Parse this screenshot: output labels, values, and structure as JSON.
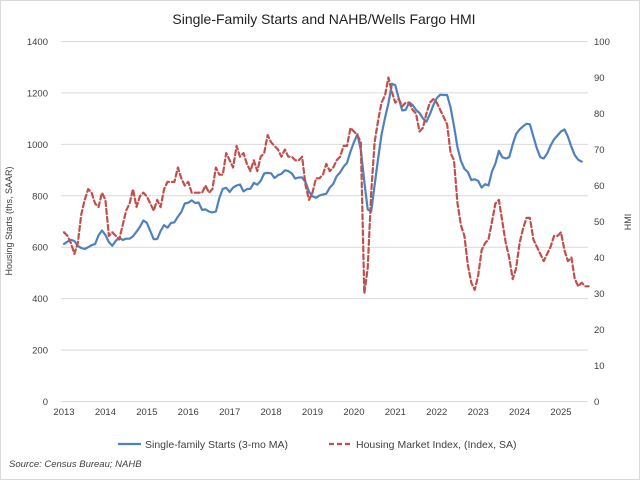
{
  "title": "Single-Family Starts and NAHB/Wells Fargo HMI",
  "source_note": "Source: Census Bureau; NAHB",
  "left_axis": {
    "title": "Housing Starts (ths, SAAR)",
    "ticks": [
      "0",
      "200",
      "400",
      "600",
      "800",
      "1000",
      "1200",
      "1400"
    ]
  },
  "right_axis": {
    "title": "HMI",
    "ticks": [
      "0",
      "10",
      "20",
      "30",
      "40",
      "50",
      "60",
      "70",
      "80",
      "90",
      "100"
    ]
  },
  "x_axis": {
    "ticks": [
      "2013",
      "2014",
      "2015",
      "2016",
      "2017",
      "2018",
      "2019",
      "2020",
      "2021",
      "2022",
      "2023",
      "2024",
      "2025"
    ]
  },
  "legend": {
    "items": [
      {
        "label": "Single-family Starts (3-mo MA)",
        "color": "#4F81BD",
        "line_style": "solid"
      },
      {
        "label": "Housing Market Index, (Index, SA)",
        "color": "#C0504D",
        "line_style": "dashed"
      }
    ]
  },
  "colors": {
    "starts_line": "#4F81BD",
    "hmi_line": "#C0504D",
    "gridline": "#D9D9D9",
    "tick_text": "#404040",
    "title_text": "#1F1F1F",
    "border": "#D9D9D9"
  },
  "chart_data": {
    "type": "line",
    "title": "Single-Family Starts and NAHB/Wells Fargo HMI",
    "x_frequency": "monthly",
    "x_start": "2013-01",
    "x_tick_labels": [
      "2013",
      "2014",
      "2015",
      "2016",
      "2017",
      "2018",
      "2019",
      "2020",
      "2021",
      "2022",
      "2023",
      "2024",
      "2025"
    ],
    "left_axis_label": "Housing Starts (ths, SAAR)",
    "left_ylim": [
      0,
      1400
    ],
    "left_tick_step": 200,
    "right_axis_label": "HMI",
    "right_ylim": [
      0,
      100
    ],
    "right_tick_step": 10,
    "grid": "horizontal",
    "legend_position": "bottom",
    "series": [
      {
        "name": "Single-family Starts (3-mo MA)",
        "axis": "left",
        "units": "thousands, SAAR",
        "color": "#4F81BD",
        "line_style": "solid",
        "values_by_year": {
          "2013": [
            613,
            622,
            629,
            624,
            605,
            597,
            593,
            600,
            608,
            612,
            646,
            665
          ],
          "2014": [
            648,
            620,
            606,
            625,
            637,
            628,
            633,
            633,
            643,
            660,
            679,
            704
          ],
          "2015": [
            695,
            663,
            631,
            632,
            663,
            686,
            676,
            694,
            697,
            719,
            737,
            770
          ],
          "2016": [
            773,
            782,
            772,
            774,
            745,
            747,
            739,
            735,
            739,
            791,
            827,
            831
          ],
          "2017": [
            815,
            832,
            840,
            844,
            817,
            826,
            827,
            850,
            843,
            858,
            887,
            889
          ],
          "2018": [
            887,
            869,
            880,
            885,
            899,
            896,
            887,
            867,
            871,
            871,
            853,
            816
          ],
          "2019": [
            798,
            792,
            801,
            805,
            808,
            832,
            846,
            876,
            891,
            913,
            928,
            972
          ],
          "2020": [
            1008,
            1039,
            979,
            856,
            747,
            739,
            841,
            944,
            1037,
            1103,
            1159,
            1236
          ],
          "2021": [
            1230,
            1178,
            1132,
            1134,
            1163,
            1153,
            1134,
            1122,
            1101,
            1088,
            1116,
            1152
          ],
          "2022": [
            1180,
            1193,
            1192,
            1192,
            1143,
            1071,
            988,
            936,
            905,
            893,
            861,
            864
          ],
          "2023": [
            858,
            832,
            845,
            840,
            895,
            925,
            975,
            950,
            945,
            950,
            1000,
            1040
          ],
          "2024": [
            1058,
            1070,
            1080,
            1078,
            1030,
            985,
            950,
            945,
            965,
            995,
            1020,
            1035
          ],
          "2025": [
            1050,
            1058,
            1030,
            990,
            958,
            940,
            933
          ]
        }
      },
      {
        "name": "Housing Market Index, (Index, SA)",
        "axis": "right",
        "units": "index",
        "color": "#C0504D",
        "line_style": "dashed",
        "values_by_year": {
          "2013": [
            47,
            46,
            44,
            41,
            44,
            52,
            56,
            59,
            58,
            55,
            54,
            58
          ],
          "2014": [
            56,
            46,
            47,
            46,
            45,
            49,
            53,
            55,
            59,
            54,
            57,
            58
          ],
          "2015": [
            57,
            55,
            53,
            56,
            54,
            59,
            61,
            61,
            61,
            65,
            62,
            60
          ],
          "2016": [
            61,
            58,
            58,
            58,
            58,
            60,
            58,
            59,
            65,
            63,
            63,
            69
          ],
          "2017": [
            67,
            65,
            71,
            68,
            69,
            66,
            64,
            67,
            64,
            68,
            69,
            74
          ],
          "2018": [
            72,
            71,
            70,
            68,
            70,
            68,
            68,
            67,
            67,
            68,
            60,
            56
          ],
          "2019": [
            58,
            62,
            62,
            63,
            66,
            64,
            65,
            67,
            68,
            71,
            71,
            76
          ],
          "2020": [
            75,
            74,
            72,
            30,
            37,
            58,
            72,
            78,
            83,
            85,
            90,
            86
          ],
          "2021": [
            83,
            84,
            82,
            83,
            83,
            81,
            80,
            75,
            76,
            80,
            83,
            84
          ],
          "2022": [
            83,
            81,
            79,
            77,
            69,
            67,
            55,
            49,
            46,
            38,
            33,
            31
          ],
          "2023": [
            35,
            42,
            44,
            45,
            50,
            55,
            56,
            50,
            44,
            40,
            34,
            37
          ],
          "2024": [
            44,
            48,
            51,
            51,
            45,
            43,
            41,
            39,
            41,
            43,
            46,
            46
          ],
          "2025": [
            47,
            42,
            39,
            40,
            34,
            32,
            33,
            32,
            32
          ]
        }
      }
    ]
  }
}
